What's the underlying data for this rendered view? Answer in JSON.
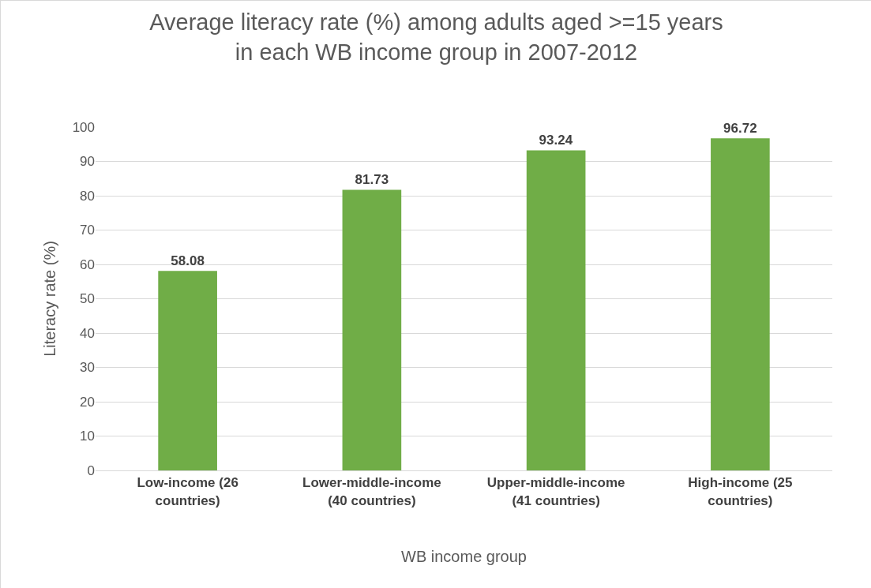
{
  "chart_data": {
    "type": "bar",
    "title": "Average literacy rate (%) among adults aged >=15 years in each WB income group in 2007-2012",
    "xlabel": "WB income group",
    "ylabel": "Literacy rate (%)",
    "categories": [
      "Low-income (26 countries)",
      "Lower-middle-income (40 countries)",
      "Upper-middle-income (41 countries)",
      "High-income (25 countries)"
    ],
    "values": [
      58.08,
      81.73,
      93.24,
      96.72
    ],
    "color": "#70ad47",
    "data_labels": true,
    "ylim": [
      0,
      100
    ],
    "yticks": [
      0,
      10,
      20,
      30,
      40,
      50,
      60,
      70,
      80,
      90,
      100
    ],
    "grid": "y"
  }
}
